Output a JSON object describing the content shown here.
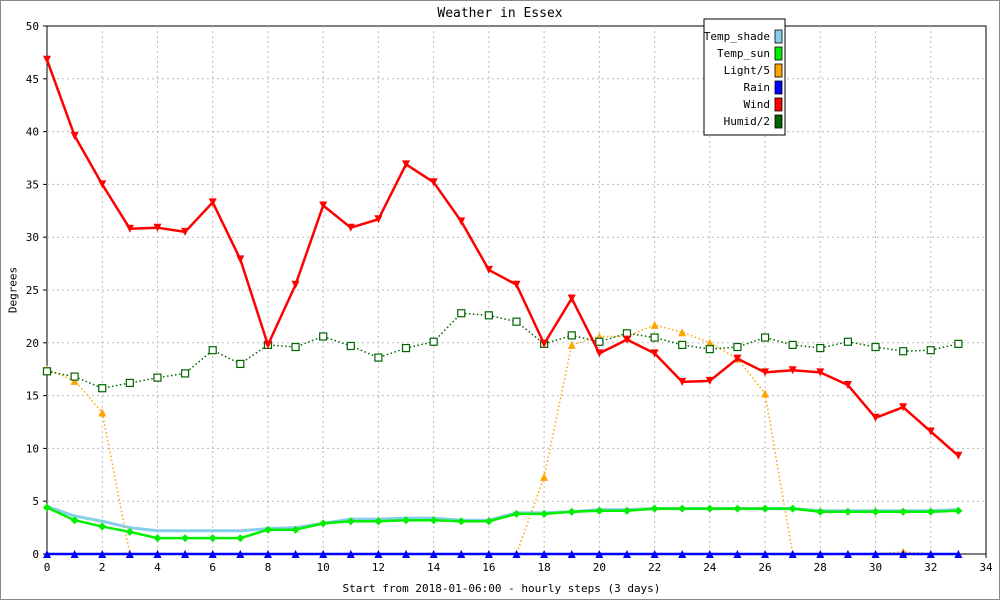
{
  "chart_data": {
    "type": "line",
    "title": "Weather in Essex",
    "xlabel": "Start from 2018-01-06:00 - hourly steps (3 days)",
    "ylabel": "Degrees",
    "xlim": [
      0,
      34
    ],
    "ylim": [
      0,
      50
    ],
    "xticks": [
      0,
      2,
      4,
      6,
      8,
      10,
      12,
      14,
      16,
      18,
      20,
      22,
      24,
      26,
      28,
      30,
      32,
      34
    ],
    "yticks": [
      0,
      5,
      10,
      15,
      20,
      25,
      30,
      35,
      40,
      45,
      50
    ],
    "grid": true,
    "legend_position": "top-right",
    "x": [
      0,
      1,
      2,
      3,
      4,
      5,
      6,
      7,
      8,
      9,
      10,
      11,
      12,
      13,
      14,
      15,
      16,
      17,
      18,
      19,
      20,
      21,
      22,
      23,
      24,
      25,
      26,
      27,
      28,
      29,
      30,
      31,
      32,
      33
    ],
    "series": [
      {
        "name": "Temp_shade",
        "color": "#87ceeb",
        "style": "solid",
        "marker": "none",
        "values": [
          4.5,
          3.6,
          3.1,
          2.5,
          2.2,
          2.2,
          2.2,
          2.2,
          2.4,
          2.5,
          2.9,
          3.3,
          3.3,
          3.4,
          3.4,
          3.2,
          3.2,
          3.9,
          3.9,
          4.0,
          4.2,
          4.2,
          4.3,
          4.3,
          4.3,
          4.3,
          4.3,
          4.3,
          4.1,
          4.1,
          4.1,
          4.1,
          4.1,
          4.2
        ]
      },
      {
        "name": "Temp_sun",
        "color": "#00ee00",
        "style": "solid",
        "marker": "diamond",
        "values": [
          4.4,
          3.2,
          2.6,
          2.1,
          1.5,
          1.5,
          1.5,
          1.5,
          2.3,
          2.3,
          2.9,
          3.1,
          3.1,
          3.2,
          3.2,
          3.1,
          3.1,
          3.8,
          3.8,
          4.0,
          4.1,
          4.1,
          4.3,
          4.3,
          4.3,
          4.3,
          4.3,
          4.3,
          4.0,
          4.0,
          4.0,
          4.0,
          4.0,
          4.1
        ]
      },
      {
        "name": "Light/5",
        "color": "#ffa500",
        "style": "dotted",
        "marker": "triangle-up",
        "values": [
          17.5,
          16.4,
          13.4,
          0,
          0,
          0,
          0,
          0,
          0,
          0,
          0,
          0,
          0,
          0,
          0,
          0,
          0,
          0,
          7.3,
          19.8,
          20.6,
          20.6,
          21.7,
          21.0,
          20.0,
          18.5,
          15.2,
          0,
          0,
          0,
          0,
          0.2,
          0,
          0
        ]
      },
      {
        "name": "Rain",
        "color": "#0000ff",
        "style": "solid",
        "marker": "triangle-up",
        "values": [
          0,
          0,
          0,
          0,
          0,
          0,
          0,
          0,
          0,
          0,
          0,
          0,
          0,
          0,
          0,
          0,
          0,
          0,
          0,
          0,
          0,
          0,
          0,
          0,
          0,
          0,
          0,
          0,
          0,
          0,
          0,
          0,
          0,
          0
        ]
      },
      {
        "name": "Wind",
        "color": "#ff0000",
        "style": "solid",
        "marker": "triangle-down",
        "values": [
          46.8,
          39.6,
          35.0,
          30.8,
          30.9,
          30.5,
          33.3,
          27.9,
          19.8,
          25.5,
          33.0,
          30.9,
          31.7,
          36.9,
          35.2,
          31.5,
          26.9,
          25.5,
          19.9,
          24.2,
          19.0,
          20.3,
          19.0,
          16.3,
          16.4,
          18.5,
          17.2,
          17.4,
          17.2,
          16.0,
          12.9,
          13.9,
          11.6,
          9.3
        ]
      },
      {
        "name": "Humid/2",
        "color": "#006400",
        "style": "dotted",
        "marker": "square",
        "values": [
          17.3,
          16.8,
          15.7,
          16.2,
          16.7,
          17.1,
          19.3,
          18.0,
          19.8,
          19.6,
          20.6,
          19.7,
          18.6,
          19.5,
          20.1,
          22.8,
          22.6,
          22.0,
          19.9,
          20.7,
          20.1,
          20.9,
          20.5,
          19.8,
          19.4,
          19.6,
          20.5,
          19.8,
          19.5,
          20.1,
          19.6,
          19.2,
          19.3,
          19.9
        ]
      }
    ]
  }
}
